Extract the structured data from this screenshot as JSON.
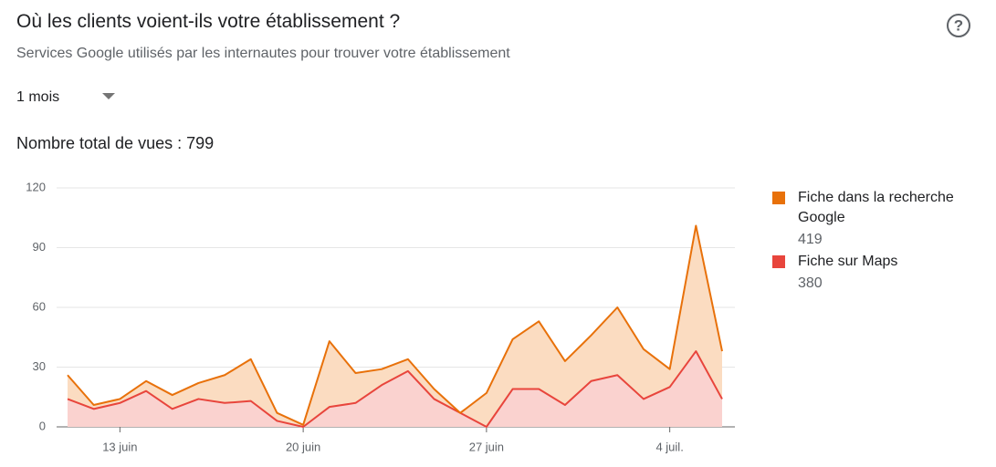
{
  "header": {
    "title": "Où les clients voient-ils votre établissement ?",
    "subtitle": "Services Google utilisés par les internautes pour trouver votre établissement",
    "period": "1 mois",
    "total_label": "Nombre total de vues :",
    "total_value": 799
  },
  "chart_data": {
    "type": "stacked_area",
    "categories": [
      null,
      null,
      "13 juin",
      null,
      null,
      null,
      null,
      null,
      null,
      "20 juin",
      null,
      null,
      null,
      null,
      null,
      null,
      "27 juin",
      null,
      null,
      null,
      null,
      null,
      null,
      "4 juil.",
      null,
      null
    ],
    "series": [
      {
        "name": "Fiche sur Maps",
        "color": "#e8453c",
        "fill": "#fad2cf",
        "total": 380,
        "values": [
          14,
          9,
          12,
          18,
          9,
          14,
          12,
          13,
          3,
          0,
          10,
          12,
          21,
          28,
          14,
          7,
          0,
          19,
          19,
          11,
          23,
          26,
          14,
          20,
          38,
          14
        ]
      },
      {
        "name": "Fiche dans la recherche Google",
        "color": "#e8710a",
        "fill": "#fbdcc1",
        "total": 419,
        "values": [
          12,
          2,
          2,
          5,
          7,
          8,
          14,
          21,
          4,
          1,
          33,
          15,
          8,
          6,
          5,
          0,
          17,
          25,
          34,
          22,
          23,
          34,
          25,
          9,
          63,
          24
        ]
      }
    ],
    "ylim": [
      0,
      120
    ],
    "yticks": [
      0,
      30,
      60,
      90,
      120
    ],
    "grid": true,
    "legend": "right"
  }
}
